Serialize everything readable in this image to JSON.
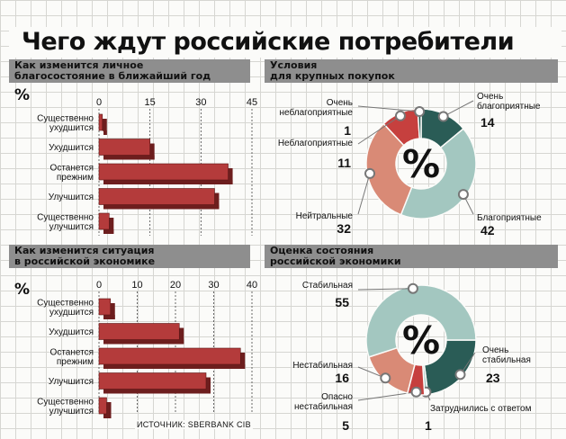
{
  "title": "Чего ждут российские потребители",
  "source": "ИСТОЧНИК: SBERBANK CIB",
  "colors": {
    "bar": "#b43b3b",
    "bar_dark": "#6d1e1e",
    "donut_red": "#c6403e",
    "donut_salmon": "#d98a76",
    "donut_teal": "#2a5c56",
    "donut_mint": "#a3c7c0"
  },
  "chart_data": [
    {
      "id": "wellbeing",
      "type": "bar",
      "orientation": "horizontal",
      "title": "Как изменится личное благосостояние в ближайший год",
      "title_lines": [
        "Как изменится личное",
        "благосостояние в ближайший год"
      ],
      "unit_label": "%",
      "ticks": [
        0,
        15,
        30,
        45
      ],
      "xlim": [
        0,
        45
      ],
      "categories": [
        [
          "Существенно",
          "ухудшится"
        ],
        [
          "Ухудшится"
        ],
        [
          "Останется",
          "прежним"
        ],
        [
          "Улучшится"
        ],
        [
          "Существенно",
          "улучшится"
        ]
      ],
      "values": [
        1,
        15,
        38,
        34,
        3
      ]
    },
    {
      "id": "purchases",
      "type": "pie",
      "donut": true,
      "title": "Условия для крупных покупок",
      "title_lines": [
        "Условия",
        "для крупных покупок"
      ],
      "center_label": "%",
      "slices": [
        {
          "label_lines": [
            "Очень",
            "благоприятные"
          ],
          "value": 14,
          "color": "#2a5c56"
        },
        {
          "label_lines": [
            "Благоприятные"
          ],
          "value": 42,
          "color": "#a3c7c0"
        },
        {
          "label_lines": [
            "Нейтральные"
          ],
          "value": 32,
          "color": "#d98a76"
        },
        {
          "label_lines": [
            "Неблагоприятные"
          ],
          "value": 11,
          "color": "#c6403e"
        },
        {
          "label_lines": [
            "Очень",
            "неблагоприятные"
          ],
          "value": 1,
          "color": "#2a5c56"
        }
      ]
    },
    {
      "id": "economy",
      "type": "bar",
      "orientation": "horizontal",
      "title": "Как изменится ситуация в российской экономике",
      "title_lines": [
        "Как изменится ситуация",
        "в российской экономике"
      ],
      "unit_label": "%",
      "ticks": [
        0,
        10,
        20,
        30,
        40
      ],
      "xlim": [
        0,
        40
      ],
      "categories": [
        [
          "Существенно",
          "ухудшится"
        ],
        [
          "Ухудшится"
        ],
        [
          "Останется",
          "прежним"
        ],
        [
          "Улучшится"
        ],
        [
          "Существенно",
          "улучшится"
        ]
      ],
      "values": [
        3,
        21,
        37,
        28,
        2
      ]
    },
    {
      "id": "stability",
      "type": "pie",
      "donut": true,
      "title": "Оценка состояния российской экономики",
      "title_lines": [
        "Оценка состояния",
        "российской экономики"
      ],
      "center_label": "%",
      "slices": [
        {
          "label_lines": [
            "Очень",
            "стабильная"
          ],
          "value": 23,
          "color": "#2a5c56"
        },
        {
          "label_lines": [
            "Затруднились с ответом"
          ],
          "value": 1,
          "color": "#a3c7c0"
        },
        {
          "label_lines": [
            "Опасно",
            "нестабильная"
          ],
          "value": 5,
          "color": "#c6403e"
        },
        {
          "label_lines": [
            "Нестабильная"
          ],
          "value": 16,
          "color": "#d98a76"
        },
        {
          "label_lines": [
            "Стабильная"
          ],
          "value": 55,
          "color": "#a3c7c0"
        }
      ]
    }
  ]
}
